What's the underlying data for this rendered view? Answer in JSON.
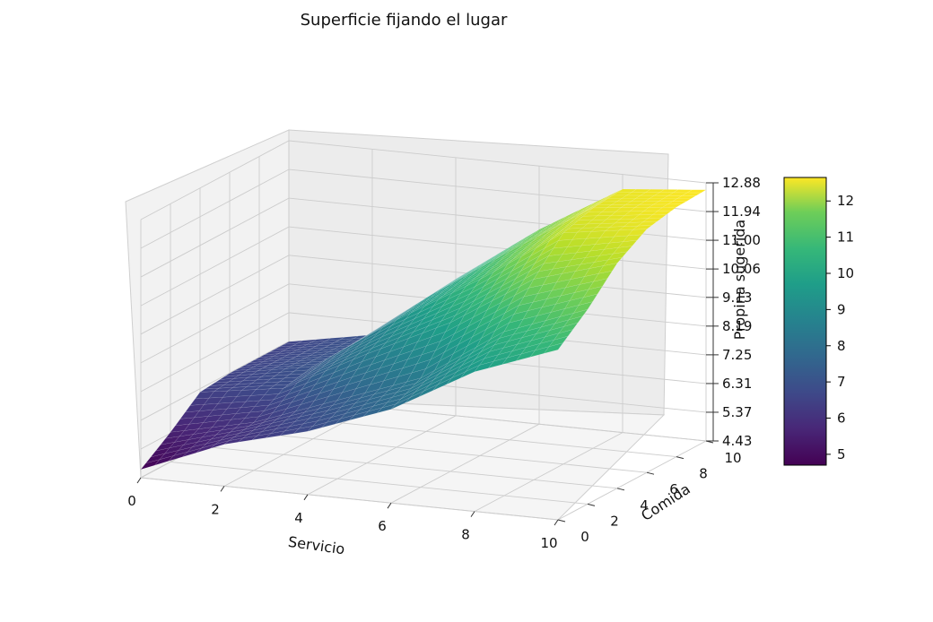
{
  "chart_data": {
    "type": "surface",
    "title": "Superficie fijando el lugar",
    "xlabel": "Servicio",
    "ylabel": "Comida",
    "zlabel": "Propina sugerida",
    "x_ticks": [
      "0",
      "2",
      "4",
      "6",
      "8",
      "10"
    ],
    "y_ticks": [
      "0",
      "2",
      "4",
      "6",
      "8",
      "10"
    ],
    "z_ticks": [
      "4.43",
      "5.37",
      "6.31",
      "7.25",
      "8.19",
      "9.13",
      "10.06",
      "11.00",
      "11.94",
      "12.88"
    ],
    "xlim": [
      0,
      10
    ],
    "ylim": [
      0,
      10
    ],
    "zlim": [
      4.43,
      12.88
    ],
    "colormap": "viridis",
    "colorbar": {
      "ticks": [
        "5",
        "6",
        "7",
        "8",
        "9",
        "10",
        "11",
        "12"
      ],
      "range": [
        4.7,
        12.65
      ]
    },
    "surface_samples": {
      "servicio": [
        0,
        2,
        4,
        6,
        8,
        10
      ],
      "comida": [
        0,
        2,
        4,
        6,
        8,
        10
      ],
      "propina": [
        [
          4.7,
          5.8,
          6.5,
          7.5,
          9.0,
          10.0
        ],
        [
          5.4,
          6.0,
          7.0,
          8.0,
          9.8,
          10.8
        ],
        [
          6.2,
          6.6,
          8.0,
          9.3,
          11.0,
          11.8
        ],
        [
          6.3,
          6.8,
          8.6,
          10.2,
          12.0,
          12.4
        ],
        [
          6.3,
          6.8,
          8.8,
          10.6,
          12.3,
          12.6
        ],
        [
          6.3,
          6.8,
          8.9,
          10.8,
          12.4,
          12.65
        ]
      ]
    }
  }
}
